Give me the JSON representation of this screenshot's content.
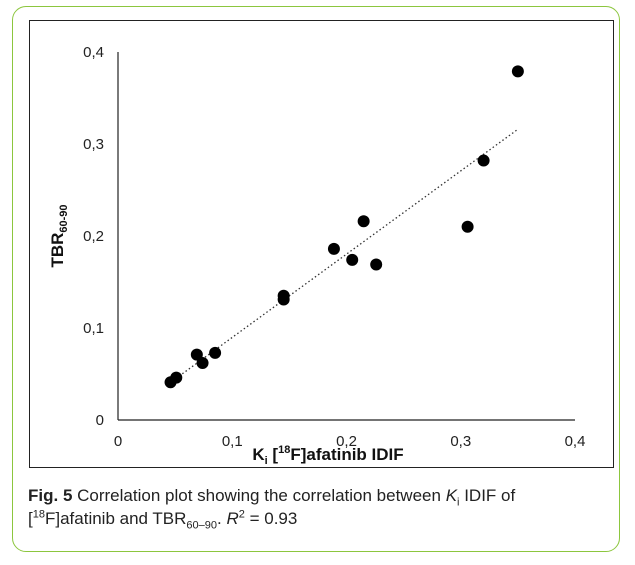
{
  "chart_data": {
    "type": "scatter",
    "title": "",
    "xlabel": {
      "main": "K",
      "sub": "i",
      "rest_prefix": "[",
      "sup": "18",
      "rest": "F]afatinib IDIF"
    },
    "ylabel": {
      "main": "TBR",
      "sub": "60-90"
    },
    "xlim": [
      0,
      0.4
    ],
    "ylim": [
      0,
      0.4
    ],
    "xticks": [
      "0",
      "0,1",
      "0,2",
      "0,3",
      "0,4"
    ],
    "yticks": [
      "0",
      "0,1",
      "0,2",
      "0,3",
      "0,4"
    ],
    "grid": false,
    "trendline": {
      "style": "dotted",
      "from": [
        0.045,
        0.04
      ],
      "to": [
        0.35,
        0.316
      ]
    },
    "points": [
      [
        0.046,
        0.041
      ],
      [
        0.051,
        0.046
      ],
      [
        0.069,
        0.071
      ],
      [
        0.074,
        0.062
      ],
      [
        0.085,
        0.073
      ],
      [
        0.145,
        0.135
      ],
      [
        0.145,
        0.131
      ],
      [
        0.189,
        0.186
      ],
      [
        0.205,
        0.174
      ],
      [
        0.215,
        0.216
      ],
      [
        0.226,
        0.169
      ],
      [
        0.306,
        0.21
      ],
      [
        0.32,
        0.282
      ],
      [
        0.35,
        0.379
      ]
    ]
  },
  "caption": {
    "fig_label": "Fig. 5",
    "text_1": " Correlation plot showing the correlation between ",
    "k": "K",
    "k_sub": "i",
    "text_2": " IDIF of",
    "bracket_open": "[",
    "sup_18": "18",
    "text_3": "F]afatinib and TBR",
    "tbr_sub": "60–90",
    "text_4": ". ",
    "r": "R",
    "r_sup": "2",
    "text_5": " = 0.93"
  },
  "colors": {
    "frame": "#8cc63e",
    "marker": "#000000",
    "text": "#222222"
  }
}
